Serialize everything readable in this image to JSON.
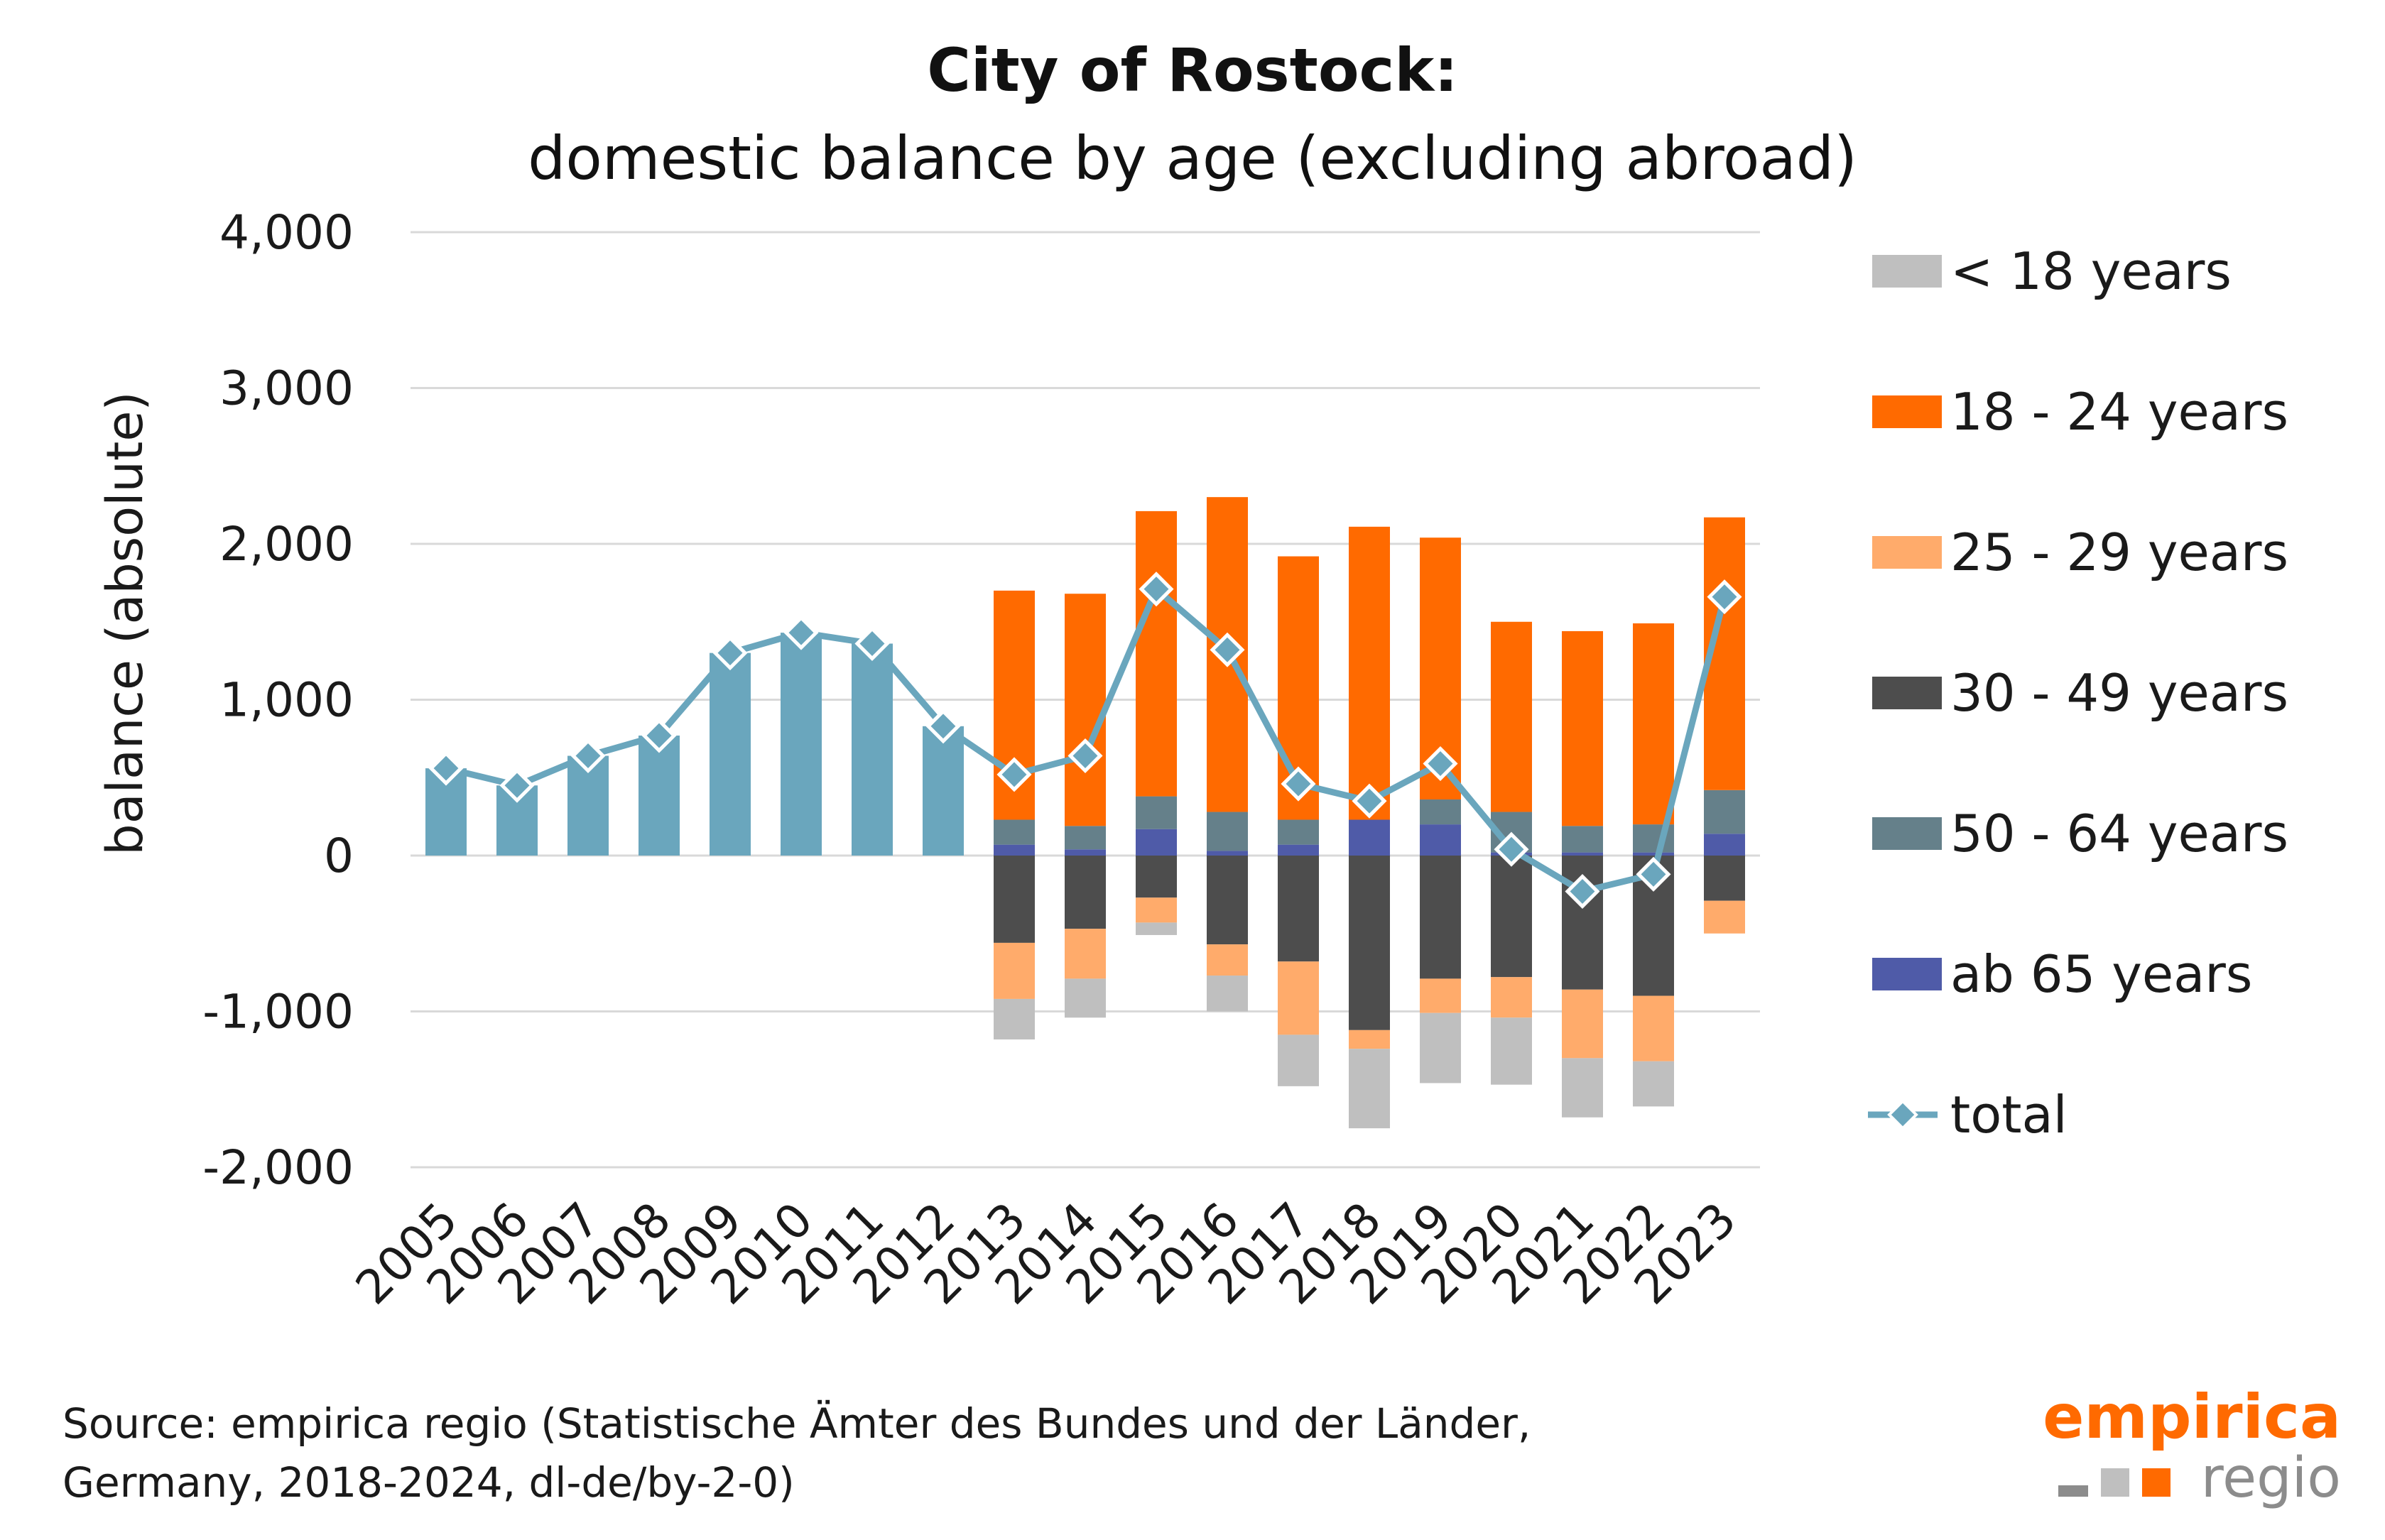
{
  "chart_data": {
    "type": "bar",
    "title": "City of Rostock:",
    "subtitle": "domestic balance by age (excluding abroad)",
    "ylabel": "balance (absolute)",
    "ylim": [
      -2000,
      4000
    ],
    "yticks": [
      -2000,
      -1000,
      0,
      1000,
      2000,
      3000,
      4000
    ],
    "ytick_labels": [
      "-2,000",
      "-1,000",
      "0",
      "1,000",
      "2,000",
      "3,000",
      "4,000"
    ],
    "categories": [
      "2005",
      "2006",
      "2007",
      "2008",
      "2009",
      "2010",
      "2011",
      "2012",
      "2013",
      "2014",
      "2015",
      "2016",
      "2017",
      "2018",
      "2019",
      "2020",
      "2021",
      "2022",
      "2023"
    ],
    "total_bar_color": "#6aa6bd",
    "series": [
      {
        "name": "< 18 years",
        "color": "#bfbfbf",
        "values": [
          null,
          null,
          null,
          null,
          null,
          null,
          null,
          null,
          -260,
          -250,
          -80,
          -230,
          -330,
          -510,
          -450,
          -430,
          -380,
          -290,
          0
        ]
      },
      {
        "name": "18 - 24 years",
        "color": "#ff6a00",
        "values": [
          null,
          null,
          null,
          null,
          null,
          null,
          null,
          null,
          1470,
          1490,
          1830,
          2020,
          1690,
          1880,
          1680,
          1220,
          1250,
          1290,
          1750
        ]
      },
      {
        "name": "25 - 29 years",
        "color": "#ffab6b",
        "values": [
          null,
          null,
          null,
          null,
          null,
          null,
          null,
          null,
          -360,
          -320,
          -160,
          -200,
          -470,
          -120,
          -220,
          -260,
          -440,
          -420,
          -210
        ]
      },
      {
        "name": "30 - 49 years",
        "color": "#4d4d4d",
        "values": [
          null,
          null,
          null,
          null,
          null,
          null,
          null,
          null,
          -560,
          -470,
          -270,
          -570,
          -680,
          -1120,
          -790,
          -780,
          -860,
          -900,
          -290
        ]
      },
      {
        "name": "50 - 64 years",
        "color": "#65808a",
        "values": [
          null,
          null,
          null,
          null,
          null,
          null,
          null,
          null,
          160,
          150,
          210,
          250,
          160,
          0,
          160,
          260,
          170,
          180,
          280
        ]
      },
      {
        "name": "ab 65 years",
        "color": "#4f5ba8",
        "values": [
          null,
          null,
          null,
          null,
          null,
          null,
          null,
          null,
          70,
          40,
          170,
          30,
          70,
          230,
          200,
          20,
          20,
          20,
          140
        ]
      },
      {
        "name": "total",
        "color": "#6aa6bd",
        "type": "line",
        "marker": "diamond",
        "values": [
          560,
          450,
          640,
          770,
          1300,
          1430,
          1360,
          830,
          520,
          640,
          1710,
          1320,
          460,
          350,
          590,
          40,
          -230,
          -120,
          1660
        ]
      }
    ],
    "legend_position": "right",
    "grid": true
  },
  "footer": {
    "source_line1": "Source: empirica regio (Statistische Ämter des Bundes und der Länder,",
    "source_line2": "Germany, 2018-2024, dl-de/by-2-0)"
  },
  "logo": {
    "word1": "empirica",
    "word2": "regio"
  }
}
